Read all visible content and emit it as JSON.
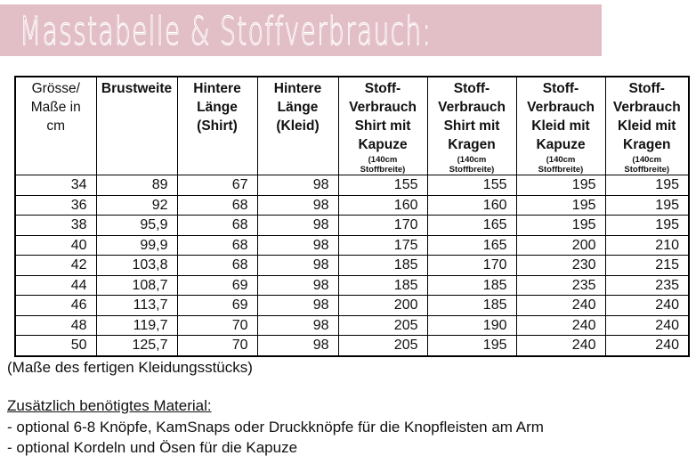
{
  "banner": {
    "title": "Masstabelle & Stoffverbrauch:",
    "background_color": "#e2bec7",
    "text_color": "#ffffff"
  },
  "table": {
    "columns": [
      {
        "label": "Grösse/\nMaße in\ncm",
        "sub": ""
      },
      {
        "label": "Brustweite",
        "sub": ""
      },
      {
        "label": "Hintere\nLänge\n(Shirt)",
        "sub": ""
      },
      {
        "label": "Hintere\nLänge\n(Kleid)",
        "sub": ""
      },
      {
        "label": "Stoff-\nVerbrauch\nShirt mit\nKapuze",
        "sub": "(140cm\nStoffbreite)"
      },
      {
        "label": "Stoff-\nVerbrauch\nShirt mit\nKragen",
        "sub": "(140cm\nStoffbreite)"
      },
      {
        "label": "Stoff-\nVerbrauch\nKleid mit\nKapuze",
        "sub": "(140cm\nStoffbreite)"
      },
      {
        "label": "Stoff-\nVerbrauch\nKleid mit\nKragen",
        "sub": "(140cm\nStoffbreite)"
      }
    ],
    "rows": [
      {
        "size": "34",
        "values": [
          "89",
          "67",
          "98",
          "155",
          "155",
          "195",
          "195"
        ]
      },
      {
        "size": "36",
        "values": [
          "92",
          "68",
          "98",
          "160",
          "160",
          "195",
          "195"
        ]
      },
      {
        "size": "38",
        "values": [
          "95,9",
          "68",
          "98",
          "170",
          "165",
          "195",
          "195"
        ]
      },
      {
        "size": "40",
        "values": [
          "99,9",
          "68",
          "98",
          "175",
          "165",
          "200",
          "210"
        ]
      },
      {
        "size": "42",
        "values": [
          "103,8",
          "68",
          "98",
          "185",
          "170",
          "230",
          "215"
        ]
      },
      {
        "size": "44",
        "values": [
          "108,7",
          "69",
          "98",
          "185",
          "185",
          "235",
          "235"
        ]
      },
      {
        "size": "46",
        "values": [
          "113,7",
          "69",
          "98",
          "200",
          "185",
          "240",
          "240"
        ]
      },
      {
        "size": "48",
        "values": [
          "119,7",
          "70",
          "98",
          "205",
          "190",
          "240",
          "240"
        ]
      },
      {
        "size": "50",
        "values": [
          "125,7",
          "70",
          "98",
          "205",
          "195",
          "240",
          "240"
        ]
      }
    ],
    "caption": "(Maße des fertigen Kleidungsstücks)"
  },
  "materials": {
    "heading": "Zusätzlich benötigtes Material:",
    "items": [
      "- optional 6-8 Knöpfe, KamSnaps oder Druckknöpfe für die Knopfleisten am Arm",
      "- optional Kordeln und Ösen für die Kapuze"
    ]
  }
}
